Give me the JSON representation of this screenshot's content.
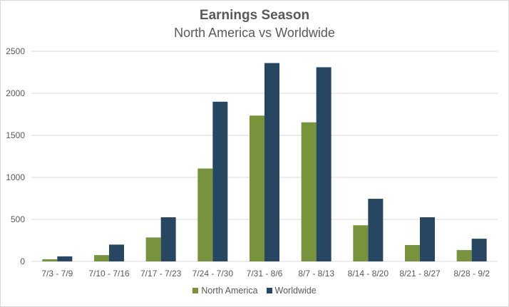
{
  "colors": {
    "north_america": "#77933c",
    "worldwide": "#264661",
    "grid": "#d9d9d9",
    "text": "#595959"
  },
  "chart_data": {
    "type": "bar",
    "title": "Earnings Season",
    "subtitle": "North America vs Worldwide",
    "xlabel": "",
    "ylabel": "",
    "ylim": [
      0,
      2500
    ],
    "yticks": [
      0,
      500,
      1000,
      1500,
      2000,
      2500
    ],
    "grid": true,
    "legend_position": "bottom",
    "categories": [
      "7/3 - 7/9",
      "7/10 - 7/16",
      "7/17 - 7/23",
      "7/24 - 7/30",
      "7/31 - 8/6",
      "8/7 - 8/13",
      "8/14 - 8/20",
      "8/21 - 8/27",
      "8/28 - 9/2"
    ],
    "series": [
      {
        "name": "North America",
        "values": [
          25,
          75,
          285,
          1105,
          1735,
          1655,
          430,
          195,
          135
        ]
      },
      {
        "name": "Worldwide",
        "values": [
          60,
          200,
          525,
          1900,
          2360,
          2310,
          745,
          525,
          270
        ]
      }
    ]
  }
}
